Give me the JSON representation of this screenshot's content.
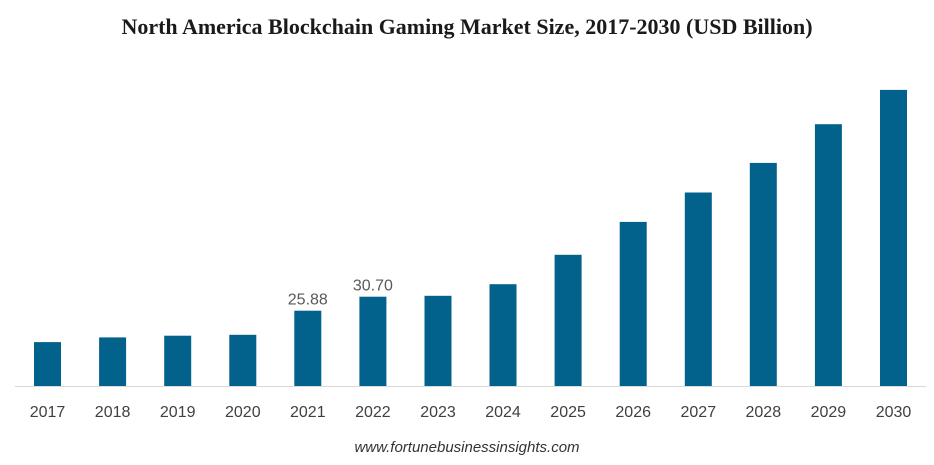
{
  "chart_data": {
    "type": "bar",
    "title": "North America Blockchain Gaming Market Size, 2017-2030 (USD Billion)",
    "xlabel": "",
    "ylabel": "",
    "categories": [
      "2017",
      "2018",
      "2019",
      "2020",
      "2021",
      "2022",
      "2023",
      "2024",
      "2025",
      "2026",
      "2027",
      "2028",
      "2029",
      "2030"
    ],
    "values": [
      15.1,
      16.7,
      17.3,
      17.6,
      25.88,
      30.7,
      31.0,
      35.0,
      45.1,
      56.4,
      66.5,
      76.7,
      90.0,
      101.8
    ],
    "data_labels": {
      "4": "25.88",
      "5": "30.70"
    },
    "ylim": [
      0,
      110
    ],
    "grid": false,
    "legend": "none",
    "bar_color": "#03628B",
    "axis_color": "#D9D9D9"
  },
  "source": "www.fortunebusinessinsights.com"
}
